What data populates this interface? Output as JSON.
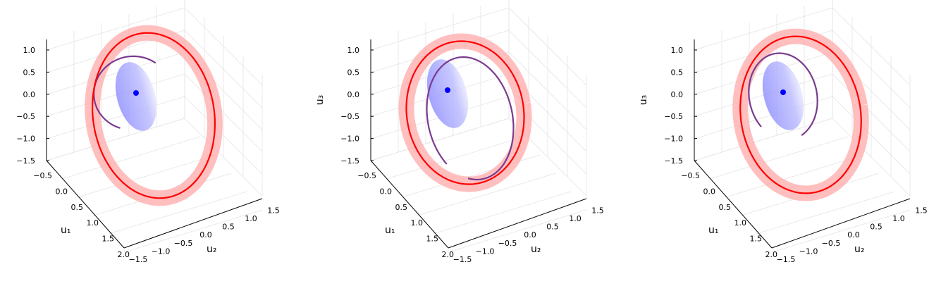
{
  "chart_data": [
    {
      "type": "surface3d",
      "panel": 1,
      "xlabel": "u₁",
      "ylabel": "u₂",
      "zlabel": "",
      "xlim": [
        -0.5,
        2.0
      ],
      "ylim": [
        -1.5,
        1.5
      ],
      "zlim": [
        -1.5,
        1.2
      ],
      "xticks": [
        "−0.5",
        "0.0",
        "0.5",
        "1.0",
        "1.5",
        "2.0"
      ],
      "yticks": [
        "−1.5",
        "−1.0",
        "−0.5",
        "0.0",
        "0.5",
        "1.0",
        "1.5"
      ],
      "zticks": [
        "1.0",
        "0.5",
        "0.0",
        "−0.5",
        "−1.0",
        "−1.5"
      ],
      "grid": true,
      "series": [
        {
          "kind": "tube",
          "color": "#ffaaaa",
          "values": [],
          "desc": "limit-cycle band"
        },
        {
          "kind": "orbit",
          "color": "#ff0000",
          "values": []
        },
        {
          "kind": "disk",
          "color": "#b4b4ff",
          "values": []
        },
        {
          "kind": "trajectory",
          "color": "#7a3b8f",
          "arc_deg": [
            120,
            320
          ]
        },
        {
          "kind": "equilibrium",
          "color": "#0000ff",
          "point": [
            0,
            0,
            0
          ]
        }
      ]
    },
    {
      "type": "surface3d",
      "panel": 2,
      "xlabel": "u₁",
      "ylabel": "u₂",
      "zlabel": "u₃",
      "xlim": [
        -0.5,
        2.0
      ],
      "ylim": [
        -1.5,
        1.5
      ],
      "zlim": [
        -1.5,
        1.2
      ],
      "xticks": [
        "−0.5",
        "0.0",
        "0.5",
        "1.0",
        "1.5",
        "2.0"
      ],
      "yticks": [
        "−1.5",
        "−1.0",
        "−0.5",
        "0.0",
        "0.5",
        "1.0",
        "1.5"
      ],
      "zticks": [
        "1.0",
        "0.5",
        "0.0",
        "−0.5",
        "−1.0",
        "−1.5"
      ],
      "grid": true,
      "series": [
        {
          "kind": "tube",
          "color": "#ffaaaa",
          "values": []
        },
        {
          "kind": "orbit",
          "color": "#ff0000",
          "values": []
        },
        {
          "kind": "disk",
          "color": "#b4b4ff",
          "values": []
        },
        {
          "kind": "trajectory",
          "color": "#7a3b8f",
          "arc_deg": [
            140,
            470
          ]
        },
        {
          "kind": "equilibrium",
          "color": "#0000ff",
          "point": [
            0,
            0,
            0
          ]
        }
      ]
    },
    {
      "type": "surface3d",
      "panel": 3,
      "xlabel": "u₁",
      "ylabel": "u₂",
      "zlabel": "u₃",
      "xlim": [
        -0.5,
        2.0
      ],
      "ylim": [
        -1.5,
        1.5
      ],
      "zlim": [
        -1.5,
        1.2
      ],
      "xticks": [
        "−0.5",
        "0.0",
        "0.5",
        "1.0",
        "1.5",
        "2.0"
      ],
      "yticks": [
        "−1.5",
        "−1.0",
        "−0.5",
        "0.0",
        "0.5",
        "1.0",
        "1.5"
      ],
      "zticks": [
        "1.0",
        "0.5",
        "0.0",
        "−0.5",
        "−1.0",
        "−1.5"
      ],
      "grid": true,
      "series": [
        {
          "kind": "tube",
          "color": "#ffaaaa",
          "values": []
        },
        {
          "kind": "orbit",
          "color": "#ff0000",
          "values": []
        },
        {
          "kind": "disk",
          "color": "#b4b4ff",
          "values": []
        },
        {
          "kind": "trajectory",
          "color": "#7a3b8f",
          "arc_deg": [
            145,
            435
          ]
        },
        {
          "kind": "equilibrium",
          "color": "#0000ff",
          "point": [
            0,
            0,
            0
          ]
        }
      ]
    }
  ]
}
